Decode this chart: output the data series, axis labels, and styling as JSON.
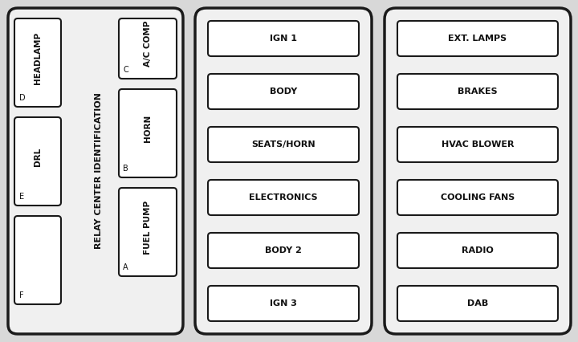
{
  "bg_color": "#d8d8d8",
  "panel_bg": "#f0f0f0",
  "panel_border": "#1a1a1a",
  "fuse_bg": "#ffffff",
  "fuse_border": "#1a1a1a",
  "text_color": "#111111",
  "panel1": {
    "label": "RELAY CENTER IDENTIFICATION",
    "left_fuses": [
      {
        "label": "HEADLAMP",
        "id": "D"
      },
      {
        "label": "DRL",
        "id": "E"
      },
      {
        "label": "",
        "id": "F"
      }
    ],
    "right_fuses": [
      {
        "label": "A/C COMP",
        "id": "C"
      },
      {
        "label": "HORN",
        "id": "B"
      },
      {
        "label": "FUEL PUMP",
        "id": "A"
      }
    ]
  },
  "panel2": {
    "fuses": [
      "IGN 1",
      "BODY",
      "SEATS/HORN",
      "ELECTRONICS",
      "BODY 2",
      "IGN 3"
    ]
  },
  "panel3": {
    "fuses": [
      "EXT. LAMPS",
      "BRAKES",
      "HVAC BLOWER",
      "COOLING FANS",
      "RADIO",
      "DAB"
    ]
  }
}
